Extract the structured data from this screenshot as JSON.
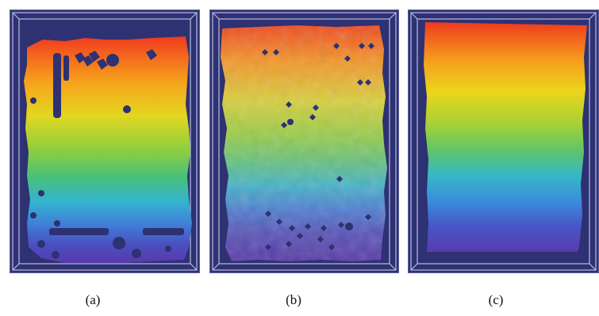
{
  "figure": {
    "panels": [
      {
        "id": "a",
        "caption": "(a)",
        "style": "sparse-holes",
        "panel_bg": "#2e3172"
      },
      {
        "id": "b",
        "caption": "(b)",
        "style": "noisy-with-holes",
        "panel_bg": "#2e3172"
      },
      {
        "id": "c",
        "caption": "(c)",
        "style": "smooth-complete",
        "panel_bg": "#2e3172"
      }
    ],
    "colormap": [
      "#e8381c",
      "#f58a1c",
      "#f4d21a",
      "#9fd13a",
      "#52c26a",
      "#37b7c9",
      "#3b8fd8",
      "#4a5bc7",
      "#5b3fb2"
    ],
    "frame_line_color": "#b9bde0",
    "hole_color": "#2e3172"
  }
}
